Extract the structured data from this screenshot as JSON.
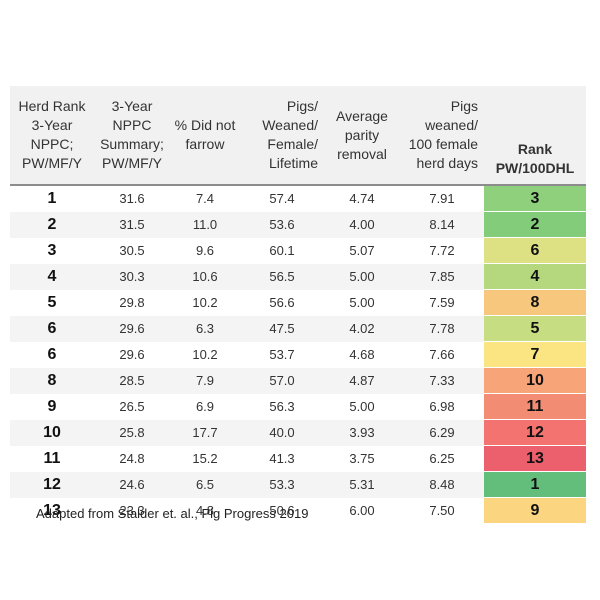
{
  "table": {
    "headers": [
      [
        "Herd Rank",
        "3-Year",
        "NPPC;",
        "PW/MF/Y"
      ],
      [
        "3-Year",
        "NPPC",
        "Summary;",
        "PW/MF/Y"
      ],
      [
        "% Did not",
        "farrow"
      ],
      [
        "Pigs/",
        "Weaned/",
        "Female/",
        "Lifetime"
      ],
      [
        "Average",
        "parity",
        "removal"
      ],
      [
        "Pigs",
        "weaned/",
        "100 female",
        "herd days"
      ],
      [
        "Rank",
        "PW/100DHL"
      ]
    ],
    "rows": [
      [
        "1",
        "31.6",
        "7.4",
        "57.4",
        "4.74",
        "7.91",
        "3"
      ],
      [
        "2",
        "31.5",
        "11.0",
        "53.6",
        "4.00",
        "8.14",
        "2"
      ],
      [
        "3",
        "30.5",
        "9.6",
        "60.1",
        "5.07",
        "7.72",
        "6"
      ],
      [
        "4",
        "30.3",
        "10.6",
        "56.5",
        "5.00",
        "7.85",
        "4"
      ],
      [
        "5",
        "29.8",
        "10.2",
        "56.6",
        "5.00",
        "7.59",
        "8"
      ],
      [
        "6",
        "29.6",
        "6.3",
        "47.5",
        "4.02",
        "7.78",
        "5"
      ],
      [
        "6",
        "29.6",
        "10.2",
        "53.7",
        "4.68",
        "7.66",
        "7"
      ],
      [
        "8",
        "28.5",
        "7.9",
        "57.0",
        "4.87",
        "7.33",
        "10"
      ],
      [
        "9",
        "26.5",
        "6.9",
        "56.3",
        "5.00",
        "6.98",
        "11"
      ],
      [
        "10",
        "25.8",
        "17.7",
        "40.0",
        "3.93",
        "6.29",
        "12"
      ],
      [
        "11",
        "24.8",
        "15.2",
        "41.3",
        "3.75",
        "6.25",
        "13"
      ],
      [
        "12",
        "24.6",
        "6.5",
        "53.3",
        "5.31",
        "8.48",
        "1"
      ],
      [
        "13",
        "23.3",
        "4.8",
        "50.6",
        "6.00",
        "7.50",
        "9"
      ]
    ],
    "rank_colors": [
      "#8fd07c",
      "#83cc7a",
      "#dde184",
      "#b5d87e",
      "#f8c77e",
      "#c7dd82",
      "#fbe482",
      "#f7a478",
      "#f28d74",
      "#f27370",
      "#ec5f6c",
      "#63be7b",
      "#fbd57f"
    ]
  },
  "caption": "Adapted from Stalder et. al., Pig Progress 2019"
}
